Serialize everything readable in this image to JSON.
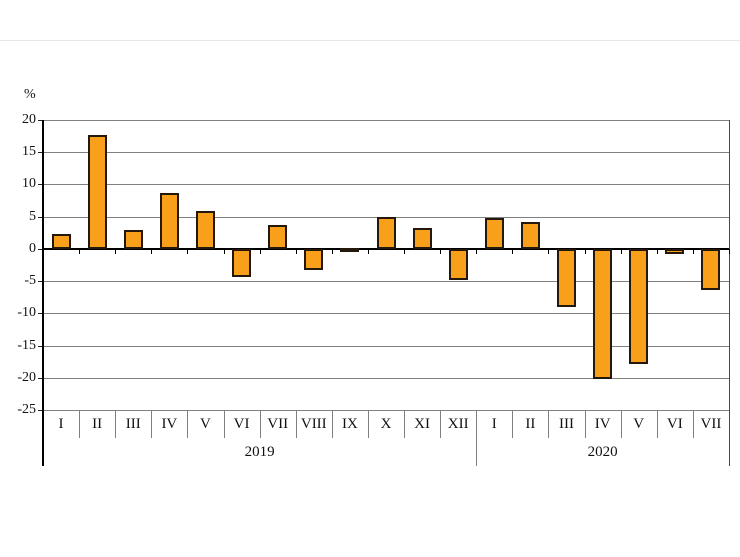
{
  "chart_data": {
    "type": "bar",
    "title": "",
    "ylabel": "%",
    "xlabel": "",
    "ylim": [
      -25,
      20
    ],
    "ytick_step": 5,
    "yticks": [
      20,
      15,
      10,
      5,
      0,
      -5,
      -10,
      -15,
      -20,
      -25
    ],
    "grid": true,
    "legend": "none",
    "groups": [
      {
        "label": "2019",
        "categories": [
          "I",
          "II",
          "III",
          "IV",
          "V",
          "VI",
          "VII",
          "VIII",
          "IX",
          "X",
          "XI",
          "XII"
        ],
        "values": [
          2.3,
          17.7,
          2.9,
          8.7,
          5.9,
          -4.3,
          3.7,
          -3.3,
          0.1,
          4.9,
          3.2,
          -4.8
        ]
      },
      {
        "label": "2020",
        "categories": [
          "I",
          "II",
          "III",
          "IV",
          "V",
          "VI",
          "VII"
        ],
        "values": [
          4.8,
          4.1,
          -9.0,
          -20.2,
          -17.8,
          -0.8,
          -6.4
        ]
      }
    ],
    "colors": {
      "bar_fill": "#F9A01B",
      "bar_border": "#23180B",
      "gridline": "#808080",
      "zero_line": "#000000",
      "axis": "#000000",
      "text": "#111111"
    }
  }
}
